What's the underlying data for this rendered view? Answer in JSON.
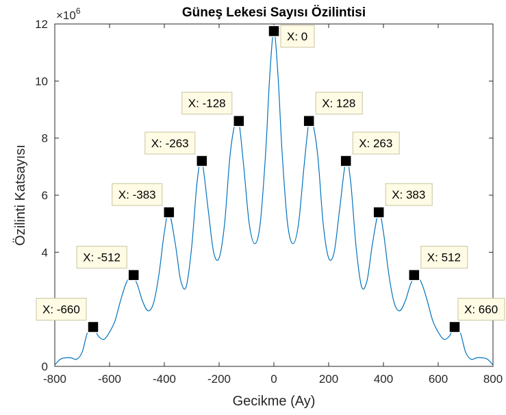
{
  "chart_data": {
    "type": "line",
    "title": "Güneş Lekesi Sayısı Özilintisi",
    "xlabel": "Gecikme (Ay)",
    "ylabel": "Özilinti Katsayısı",
    "y_exponent_label": "×10",
    "y_exponent_power": "6",
    "xlim": [
      -800,
      800
    ],
    "ylim": [
      0,
      12
    ],
    "y_scale_factor": 1000000,
    "grid": false,
    "x_ticks": [
      -800,
      -600,
      -400,
      -200,
      0,
      200,
      400,
      600,
      800
    ],
    "x_tick_labels": [
      "-800",
      "-600",
      "-400",
      "-200",
      "0",
      "200",
      "400",
      "600",
      "800"
    ],
    "y_ticks": [
      0,
      2,
      4,
      6,
      8,
      10,
      12
    ],
    "y_tick_labels": [
      "0",
      "2",
      "4",
      "6",
      "8",
      "10",
      "12"
    ],
    "series": [
      {
        "color": "#0072bd",
        "x": [
          -800,
          -780,
          -760,
          -740,
          -720,
          -700,
          -680,
          -660,
          -640,
          -620,
          -600,
          -580,
          -560,
          -540,
          -520,
          -500,
          -480,
          -460,
          -440,
          -420,
          -400,
          -383,
          -360,
          -340,
          -320,
          -300,
          -280,
          -263,
          -240,
          -220,
          -200,
          -180,
          -160,
          -140,
          -128,
          -110,
          -90,
          -70,
          -50,
          -30,
          -15,
          0,
          15,
          30,
          50,
          70,
          90,
          110,
          128,
          140,
          160,
          180,
          200,
          220,
          240,
          263,
          280,
          300,
          320,
          340,
          360,
          383,
          400,
          420,
          440,
          460,
          480,
          500,
          520,
          540,
          560,
          580,
          600,
          620,
          640,
          660,
          680,
          700,
          720,
          740,
          760,
          780,
          800
        ],
        "y": [
          0.05,
          0.25,
          0.3,
          0.3,
          0.25,
          0.5,
          1.2,
          1.38,
          1.05,
          0.95,
          1.2,
          1.6,
          2.3,
          2.9,
          3.2,
          2.9,
          2.3,
          1.95,
          2.2,
          3.2,
          4.7,
          5.4,
          4.3,
          3.0,
          2.8,
          4.2,
          6.5,
          7.2,
          5.5,
          4.0,
          3.8,
          5.0,
          7.4,
          8.6,
          8.6,
          7.0,
          5.0,
          4.3,
          5.0,
          7.5,
          10.2,
          11.75,
          10.2,
          7.5,
          5.0,
          4.3,
          5.0,
          7.0,
          8.6,
          8.6,
          7.4,
          5.0,
          3.8,
          4.0,
          5.5,
          7.2,
          6.5,
          4.2,
          2.8,
          3.0,
          4.3,
          5.4,
          4.7,
          3.2,
          2.2,
          1.95,
          2.3,
          2.9,
          3.2,
          2.9,
          2.3,
          1.6,
          1.2,
          0.95,
          1.05,
          1.38,
          1.2,
          0.5,
          0.25,
          0.3,
          0.3,
          0.25,
          0.05
        ]
      }
    ],
    "data_tips": [
      {
        "label": "X: -660",
        "x": -660,
        "y": 1.38
      },
      {
        "label": "X: -512",
        "x": -512,
        "y": 3.2
      },
      {
        "label": "X: -383",
        "x": -383,
        "y": 5.4
      },
      {
        "label": "X: -263",
        "x": -263,
        "y": 7.2
      },
      {
        "label": "X: -128",
        "x": -128,
        "y": 8.6
      },
      {
        "label": "X: 0",
        "x": 0,
        "y": 11.75
      },
      {
        "label": "X: 128",
        "x": 128,
        "y": 8.6
      },
      {
        "label": "X: 263",
        "x": 263,
        "y": 7.2
      },
      {
        "label": "X: 383",
        "x": 383,
        "y": 5.4
      },
      {
        "label": "X: 512",
        "x": 512,
        "y": 3.2
      },
      {
        "label": "X: 660",
        "x": 660,
        "y": 1.38
      }
    ]
  }
}
